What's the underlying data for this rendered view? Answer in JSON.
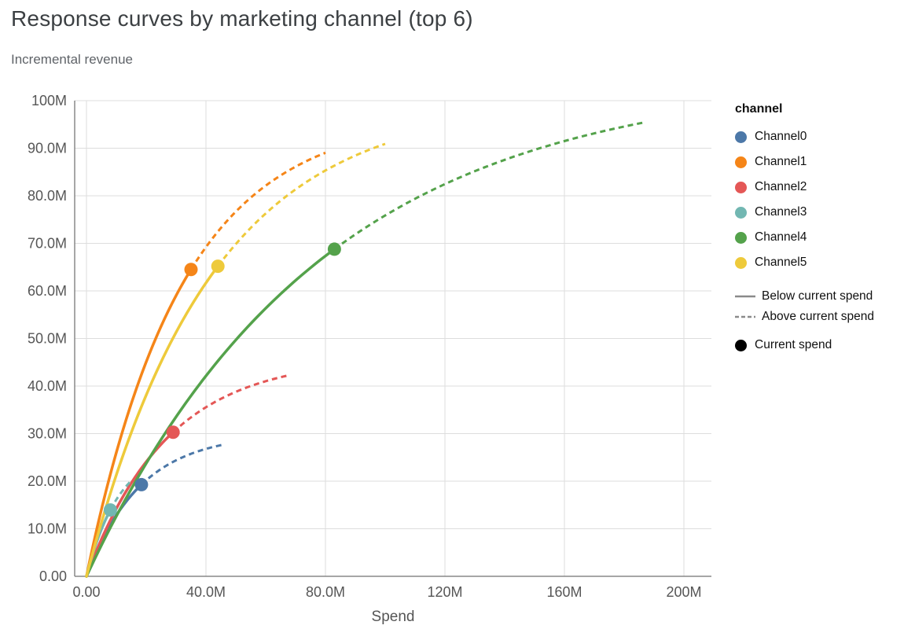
{
  "title": "Response curves by marketing channel (top 6)",
  "subtitle": "Incremental revenue",
  "legend": {
    "title": "channel",
    "entries": [
      {
        "label": "Channel0",
        "color": "#4c78a8"
      },
      {
        "label": "Channel1",
        "color": "#f58518"
      },
      {
        "label": "Channel2",
        "color": "#e45756"
      },
      {
        "label": "Channel3",
        "color": "#72b7b2"
      },
      {
        "label": "Channel4",
        "color": "#54a24b"
      },
      {
        "label": "Channel5",
        "color": "#eeca3b"
      }
    ],
    "line_styles": [
      {
        "label": "Below current spend",
        "style": "solid"
      },
      {
        "label": "Above current spend",
        "style": "dashed"
      }
    ],
    "point_entry": {
      "label": "Current spend",
      "color": "#000000"
    },
    "line_symbol_color": "#8a8a8a"
  },
  "chart_data": {
    "type": "line",
    "title": "Response curves by marketing channel (top 6)",
    "subtitle": "Incremental revenue",
    "xlabel": "Spend",
    "ylabel": "Incremental revenue",
    "units": "millions (M)",
    "xlim": [
      0,
      210
    ],
    "ylim": [
      0,
      100
    ],
    "x_ticks": [
      0,
      40,
      80,
      120,
      160,
      200
    ],
    "x_tick_labels": [
      "0.00",
      "40.0M",
      "80.0M",
      "120M",
      "160M",
      "200M"
    ],
    "y_ticks": [
      0,
      10,
      20,
      30,
      40,
      50,
      60,
      70,
      80,
      90,
      100
    ],
    "y_tick_labels": [
      "0.00",
      "10.0M",
      "20.0M",
      "30.0M",
      "40.0M",
      "50.0M",
      "60.0M",
      "70.0M",
      "80.0M",
      "90.0M",
      "100M"
    ],
    "grid": true,
    "legend_position": "right",
    "curve_model": "revenue_M = saturation_M * (1 - exp(-spend_M / k_M)); solid segment 0..current_spend, dashed segment current_spend..max_spend, dot at current spend",
    "series": [
      {
        "name": "Channel0",
        "color": "#4c78a8",
        "saturation_M": 30,
        "k_M": 17.9,
        "current_spend_M": 18.4,
        "current_revenue_M": 19.3,
        "max_spend_M": 45.5,
        "max_revenue_M": 27.6
      },
      {
        "name": "Channel1",
        "color": "#f58518",
        "saturation_M": 97,
        "k_M": 32.0,
        "current_spend_M": 35.0,
        "current_revenue_M": 64.5,
        "max_spend_M": 80.0,
        "max_revenue_M": 89.0
      },
      {
        "name": "Channel2",
        "color": "#e45756",
        "saturation_M": 46,
        "k_M": 27.0,
        "current_spend_M": 29.0,
        "current_revenue_M": 30.3,
        "max_spend_M": 67.0,
        "max_revenue_M": 42.1
      },
      {
        "name": "Channel3",
        "color": "#72b7b2",
        "saturation_M": 27,
        "k_M": 11.0,
        "current_spend_M": 8.0,
        "current_revenue_M": 14.0,
        "max_spend_M": 15.0,
        "max_revenue_M": 20.1
      },
      {
        "name": "Channel4",
        "color": "#54a24b",
        "saturation_M": 105,
        "k_M": 78.0,
        "current_spend_M": 83.0,
        "current_revenue_M": 68.8,
        "max_spend_M": 187.0,
        "max_revenue_M": 95.4
      },
      {
        "name": "Channel5",
        "color": "#eeca3b",
        "saturation_M": 100,
        "k_M": 41.7,
        "current_spend_M": 44.0,
        "current_revenue_M": 65.2,
        "max_spend_M": 100.0,
        "max_revenue_M": 90.9
      }
    ],
    "style": {
      "grid_color": "#dddddd",
      "domain_color": "#888888",
      "tick_label_color": "#565656",
      "axis_title_color": "#555555",
      "title_color": "#3c4043",
      "subtitle_color": "#5f6368",
      "background": "#ffffff"
    }
  }
}
